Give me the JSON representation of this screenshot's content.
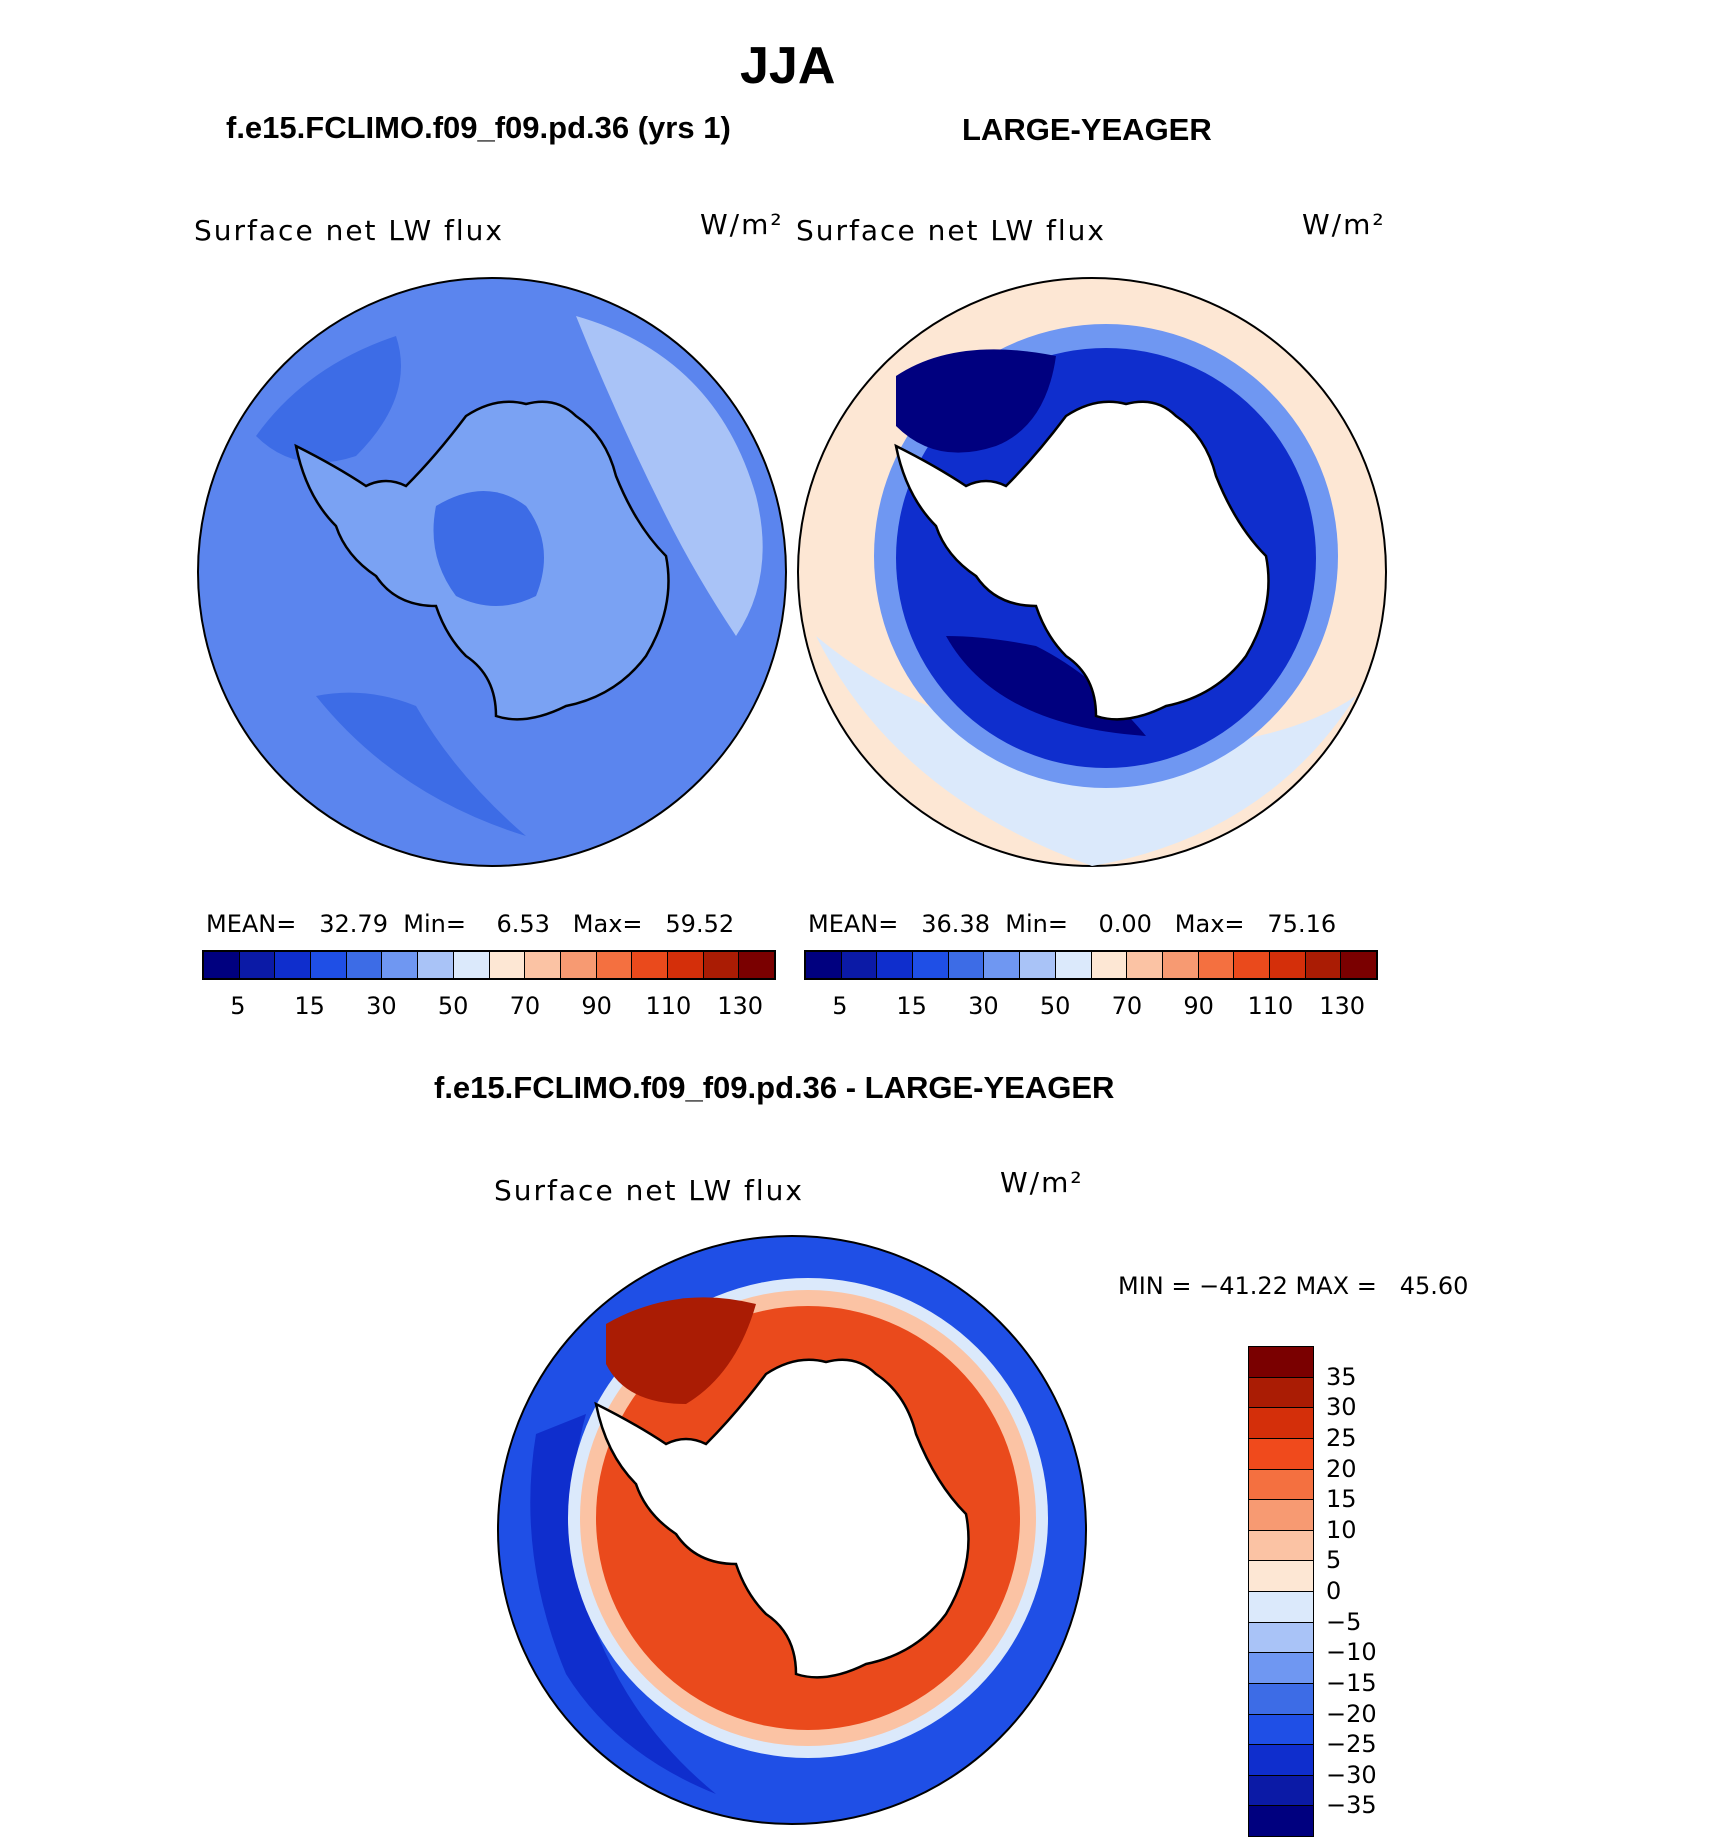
{
  "season": "JJA",
  "left_panel": {
    "case_title": "f.e15.FCLIMO.f09_f09.pd.36 (yrs 1)",
    "variable": "Surface net LW flux",
    "units": "W/m²",
    "stats": {
      "mean_label": "MEAN=",
      "mean": "32.79",
      "min_label": "Min=",
      "min": "6.53",
      "max_label": "Max=",
      "max": "59.52"
    }
  },
  "right_panel": {
    "case_title": "LARGE-YEAGER",
    "variable": "Surface net LW flux",
    "units": "W/m²",
    "stats": {
      "mean_label": "MEAN=",
      "mean": "36.38",
      "min_label": "Min=",
      "min": "0.00",
      "max_label": "Max=",
      "max": "75.16"
    }
  },
  "diff_panel": {
    "case_title": "f.e15.FCLIMO.f09_f09.pd.36 - LARGE-YEAGER",
    "variable": "Surface net LW flux",
    "units": "W/m²",
    "minmax_text": "MIN = −41.22 MAX =   45.60"
  },
  "top_colorbar": {
    "colors": [
      "#00007f",
      "#0b1aa6",
      "#0f2ecd",
      "#1f4fe6",
      "#3d6ce6",
      "#6f97f2",
      "#a9c3f7",
      "#dbe9fb",
      "#fde7d4",
      "#fbc3a4",
      "#f79a72",
      "#f47040",
      "#ea4a1c",
      "#d42f0a",
      "#aa1c04",
      "#7a0000"
    ],
    "labels": [
      "5",
      "15",
      "30",
      "50",
      "70",
      "90",
      "110",
      "130"
    ]
  },
  "diff_colorbar": {
    "colors": [
      "#7a0000",
      "#aa1c04",
      "#d42f0a",
      "#f04a1c",
      "#f47040",
      "#f79a72",
      "#fbc3a4",
      "#fde7d4",
      "#dbe9fb",
      "#a9c3f7",
      "#6f97f2",
      "#3d6ce6",
      "#1f4fe6",
      "#0f2ecd",
      "#0b1aa6",
      "#00007f"
    ],
    "labels": [
      "35",
      "30",
      "25",
      "20",
      "15",
      "10",
      "5",
      "0",
      "−5",
      "−10",
      "−15",
      "−20",
      "−25",
      "−30",
      "−35"
    ]
  },
  "map_fill": {
    "left_ocean": "#5b85ee",
    "left_land": "#7aa2f3",
    "right_ocean": "#fde7d4",
    "right_ring": "#0f2ecd",
    "right_ring_inner": "#00007f",
    "diff_ocean": "#1f4fe6",
    "diff_ring": "#ea4a1c",
    "land_white": "#ffffff"
  }
}
